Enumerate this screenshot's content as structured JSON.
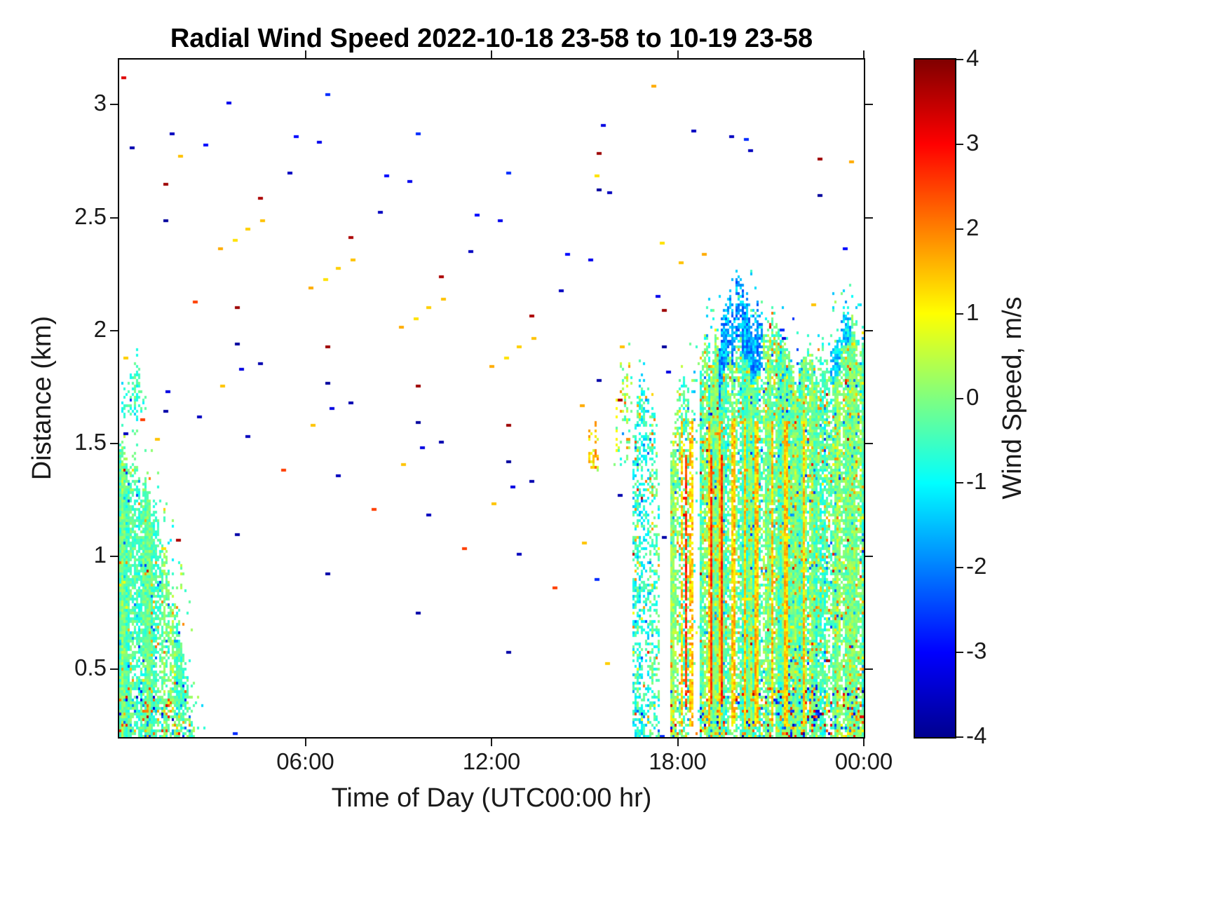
{
  "chart_data": {
    "type": "heatmap",
    "title": "Radial Wind Speed 2022-10-18 23-58 to 10-19 23-58",
    "xlabel": "Time of Day (UTC00:00 hr)",
    "ylabel": "Distance (km)",
    "colorbar_label": "Wind Speed, m/s",
    "x_ticks": [
      {
        "hour": 6,
        "label": "06:00"
      },
      {
        "hour": 12,
        "label": "12:00"
      },
      {
        "hour": 18,
        "label": "18:00"
      },
      {
        "hour": 24,
        "label": "00:00"
      }
    ],
    "xlim_hours": [
      0,
      24
    ],
    "y_ticks": [
      "0.5",
      "1",
      "1.5",
      "2",
      "2.5",
      "3"
    ],
    "ylim_km": [
      0.2,
      3.2
    ],
    "colorbar_ticks": [
      "4",
      "3",
      "2",
      "1",
      "0",
      "-1",
      "-2",
      "-3",
      "-4"
    ],
    "clim": [
      -4,
      4
    ],
    "colormap": "jet",
    "colormap_stops": [
      {
        "frac": 0.0,
        "color": "#00008F"
      },
      {
        "frac": 0.125,
        "color": "#0000FF"
      },
      {
        "frac": 0.375,
        "color": "#00FFFF"
      },
      {
        "frac": 0.625,
        "color": "#FFFF00"
      },
      {
        "frac": 0.875,
        "color": "#FF0000"
      },
      {
        "frac": 1.0,
        "color": "#800000"
      }
    ],
    "grid": false,
    "legend": "colorbar-right",
    "regions": [
      {
        "type": "block",
        "name": "early-morning-boundary-layer",
        "t_range": [
          0,
          2.45
        ],
        "d_base": 0.2,
        "top_profile": [
          [
            0,
            1.5
          ],
          [
            0.6,
            1.42
          ],
          [
            1.0,
            1.32
          ],
          [
            1.4,
            1.12
          ],
          [
            1.8,
            0.85
          ],
          [
            2.1,
            0.6
          ],
          [
            2.45,
            0.28
          ]
        ],
        "density": 0.82,
        "mean": -0.25,
        "spread": 0.5,
        "p_yellow": 0.02,
        "p_hot": 0.002,
        "p_cold": 0.025,
        "rough_bottom": true
      },
      {
        "type": "block",
        "name": "early-morning-elevated-patch",
        "t_range": [
          0.05,
          0.95
        ],
        "d_base": 1.62,
        "top_profile": [
          [
            0.05,
            1.8
          ],
          [
            0.3,
            1.92
          ],
          [
            0.6,
            1.88
          ],
          [
            0.95,
            1.7
          ]
        ],
        "density": 0.4,
        "mean": -0.55,
        "spread": 0.45,
        "p_yellow": 0.0,
        "p_hot": 0.0,
        "p_cold": 0.05,
        "rough_bottom": false
      },
      {
        "type": "block",
        "name": "evening-storm-block",
        "t_range": [
          17.75,
          24
        ],
        "d_base": 0.2,
        "top_profile": [
          [
            17.75,
            1.5
          ],
          [
            18.0,
            1.75
          ],
          [
            18.3,
            1.9
          ],
          [
            18.8,
            2.0
          ],
          [
            19.2,
            2.0
          ],
          [
            19.6,
            2.15
          ],
          [
            19.9,
            2.25
          ],
          [
            20.2,
            2.2
          ],
          [
            20.6,
            2.1
          ],
          [
            21.0,
            2.05
          ],
          [
            21.5,
            1.95
          ],
          [
            21.9,
            1.85
          ],
          [
            22.3,
            1.95
          ],
          [
            22.7,
            1.88
          ],
          [
            23.1,
            2.0
          ],
          [
            23.45,
            2.1
          ],
          [
            23.75,
            2.0
          ],
          [
            24,
            2.1
          ]
        ],
        "density": 0.9,
        "mean": -0.2,
        "spread": 0.55,
        "p_yellow": 0.06,
        "p_hot": 0.008,
        "p_cold": 0.035,
        "rough_bottom": true
      },
      {
        "type": "block",
        "name": "pre-front-column",
        "t_range": [
          16.55,
          17.45
        ],
        "d_base": 0.2,
        "top_profile": [
          [
            16.55,
            1.55
          ],
          [
            16.8,
            1.95
          ],
          [
            17.1,
            1.85
          ],
          [
            17.45,
            1.5
          ]
        ],
        "density": 0.42,
        "mean": -0.6,
        "spread": 0.7,
        "p_yellow": 0.05,
        "p_hot": 0.006,
        "p_cold": 0.05,
        "rough_bottom": false
      },
      {
        "type": "block",
        "name": "afternoon-isolated-patch",
        "t_range": [
          15.15,
          15.45
        ],
        "d_base": 1.38,
        "top_profile": [
          [
            15.15,
            1.62
          ],
          [
            15.45,
            1.62
          ]
        ],
        "density": 0.5,
        "mean": 1.2,
        "spread": 0.6,
        "p_yellow": 0.2,
        "p_hot": 0.05,
        "p_cold": 0.0,
        "rough_bottom": false
      },
      {
        "type": "block",
        "name": "pre-front-upper-scatter",
        "t_range": [
          15.9,
          16.55
        ],
        "d_base": 1.4,
        "top_profile": [
          [
            15.9,
            1.75
          ],
          [
            16.2,
            1.95
          ],
          [
            16.55,
            1.9
          ]
        ],
        "density": 0.15,
        "mean": 0.2,
        "spread": 0.8,
        "p_yellow": 0.08,
        "p_hot": 0.01,
        "p_cold": 0.02,
        "rough_bottom": false
      },
      {
        "type": "block",
        "name": "early-morning-fringe",
        "t_range": [
          0,
          2.8
        ],
        "d_base": 0.2,
        "top_profile": [
          [
            0,
            1.95
          ],
          [
            1.0,
            1.6
          ],
          [
            2.0,
            1.1
          ],
          [
            2.8,
            0.35
          ]
        ],
        "density": 0.05,
        "mean": -0.3,
        "spread": 0.7,
        "p_yellow": 0.01,
        "p_hot": 0.003,
        "p_cold": 0.03,
        "rough_bottom": false
      },
      {
        "type": "block",
        "name": "evening-top-fringe",
        "t_range": [
          17.9,
          24
        ],
        "d_base": 1.5,
        "top_profile": [
          [
            17.9,
            1.8
          ],
          [
            19,
            2.2
          ],
          [
            20,
            2.35
          ],
          [
            21,
            2.15
          ],
          [
            22,
            2.05
          ],
          [
            23,
            2.2
          ],
          [
            24,
            2.2
          ]
        ],
        "density": 0.06,
        "mean": -0.8,
        "spread": 0.8,
        "p_yellow": 0.01,
        "p_hot": 0.002,
        "p_cold": 0.12,
        "rough_bottom": false
      },
      {
        "type": "gap",
        "name": "post-front-gap",
        "t_center": 18.55,
        "half_width": 0.18
      },
      {
        "type": "cap",
        "name": "storm-top-cold-cap",
        "t_range": [
          19.35,
          20.75
        ],
        "depth": 0.32,
        "mean": -1.7
      },
      {
        "type": "cap",
        "name": "storm-top-cold-cap-2",
        "t_range": [
          22.9,
          23.6
        ],
        "depth": 0.2,
        "mean": -1.2
      },
      {
        "type": "streak",
        "name": "warm-updraft-streaks",
        "t_hours": [
          18.15,
          18.45,
          19.0,
          19.35,
          19.8,
          20.15,
          20.55,
          21.05,
          21.5,
          22.05
        ],
        "half_width": 0.045,
        "d_range": [
          0.25,
          1.6
        ],
        "mean": 1.4,
        "jitter": 1.2,
        "fill_prob": 0.75
      },
      {
        "type": "streak",
        "name": "hot-streaks",
        "t_hours": [
          18.3,
          19.1,
          19.45
        ],
        "half_width": 0.03,
        "d_range": [
          0.35,
          1.45
        ],
        "mean": 2.6,
        "jitter": 1.0,
        "fill_prob": 0.7
      },
      {
        "type": "speckle",
        "name": "clear-air-specks",
        "t_range": [
          0,
          24
        ],
        "d_range": [
          0.2,
          3.2
        ],
        "density": 0.0013
      }
    ]
  }
}
